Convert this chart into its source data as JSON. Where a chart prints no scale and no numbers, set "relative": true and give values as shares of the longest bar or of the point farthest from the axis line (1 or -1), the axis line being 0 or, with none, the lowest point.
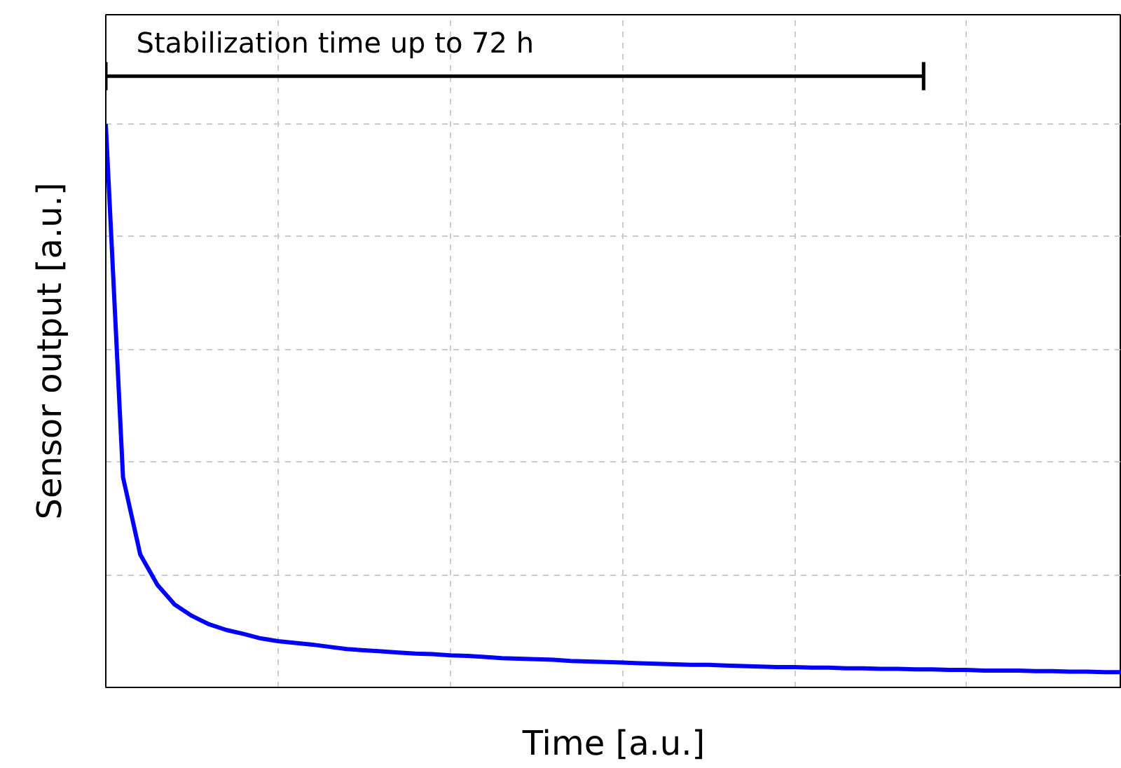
{
  "chart_data": {
    "type": "line",
    "xlabel": "Time [a.u.]",
    "ylabel": "Sensor output [a.u.]",
    "relative": true,
    "tick_labels": false,
    "grid": true,
    "annotations": [
      "Stabilization time up to 72 h"
    ],
    "categories": [
      null,
      null,
      null,
      null,
      null,
      null,
      null,
      null,
      null,
      null,
      null,
      null,
      null,
      null,
      null,
      null,
      null,
      null,
      null,
      null,
      null,
      null,
      null,
      null,
      null,
      null,
      null,
      null,
      null,
      null,
      null,
      null,
      null,
      null,
      null,
      null,
      null,
      null,
      null,
      null,
      null,
      null,
      null,
      null,
      null,
      null,
      null,
      null,
      null,
      null,
      null,
      null,
      null,
      null,
      null,
      null,
      null,
      null,
      null,
      null
    ],
    "series": [
      {
        "color": "#0000ff",
        "values": [
          1.0,
          0.373,
          0.236,
          0.182,
          0.147,
          0.127,
          0.112,
          0.102,
          0.095,
          0.087,
          0.082,
          0.079,
          0.076,
          0.072,
          0.068,
          0.066,
          0.064,
          0.062,
          0.06,
          0.059,
          0.057,
          0.056,
          0.054,
          0.052,
          0.051,
          0.05,
          0.049,
          0.047,
          0.046,
          0.045,
          0.044,
          0.043,
          0.042,
          0.041,
          0.04,
          0.04,
          0.039,
          0.038,
          0.037,
          0.036,
          0.036,
          0.035,
          0.035,
          0.034,
          0.034,
          0.033,
          0.033,
          0.032,
          0.032,
          0.031,
          0.031,
          0.03,
          0.03,
          0.03,
          0.029,
          0.029,
          0.028,
          0.028,
          0.027,
          0.027
        ]
      }
    ]
  }
}
